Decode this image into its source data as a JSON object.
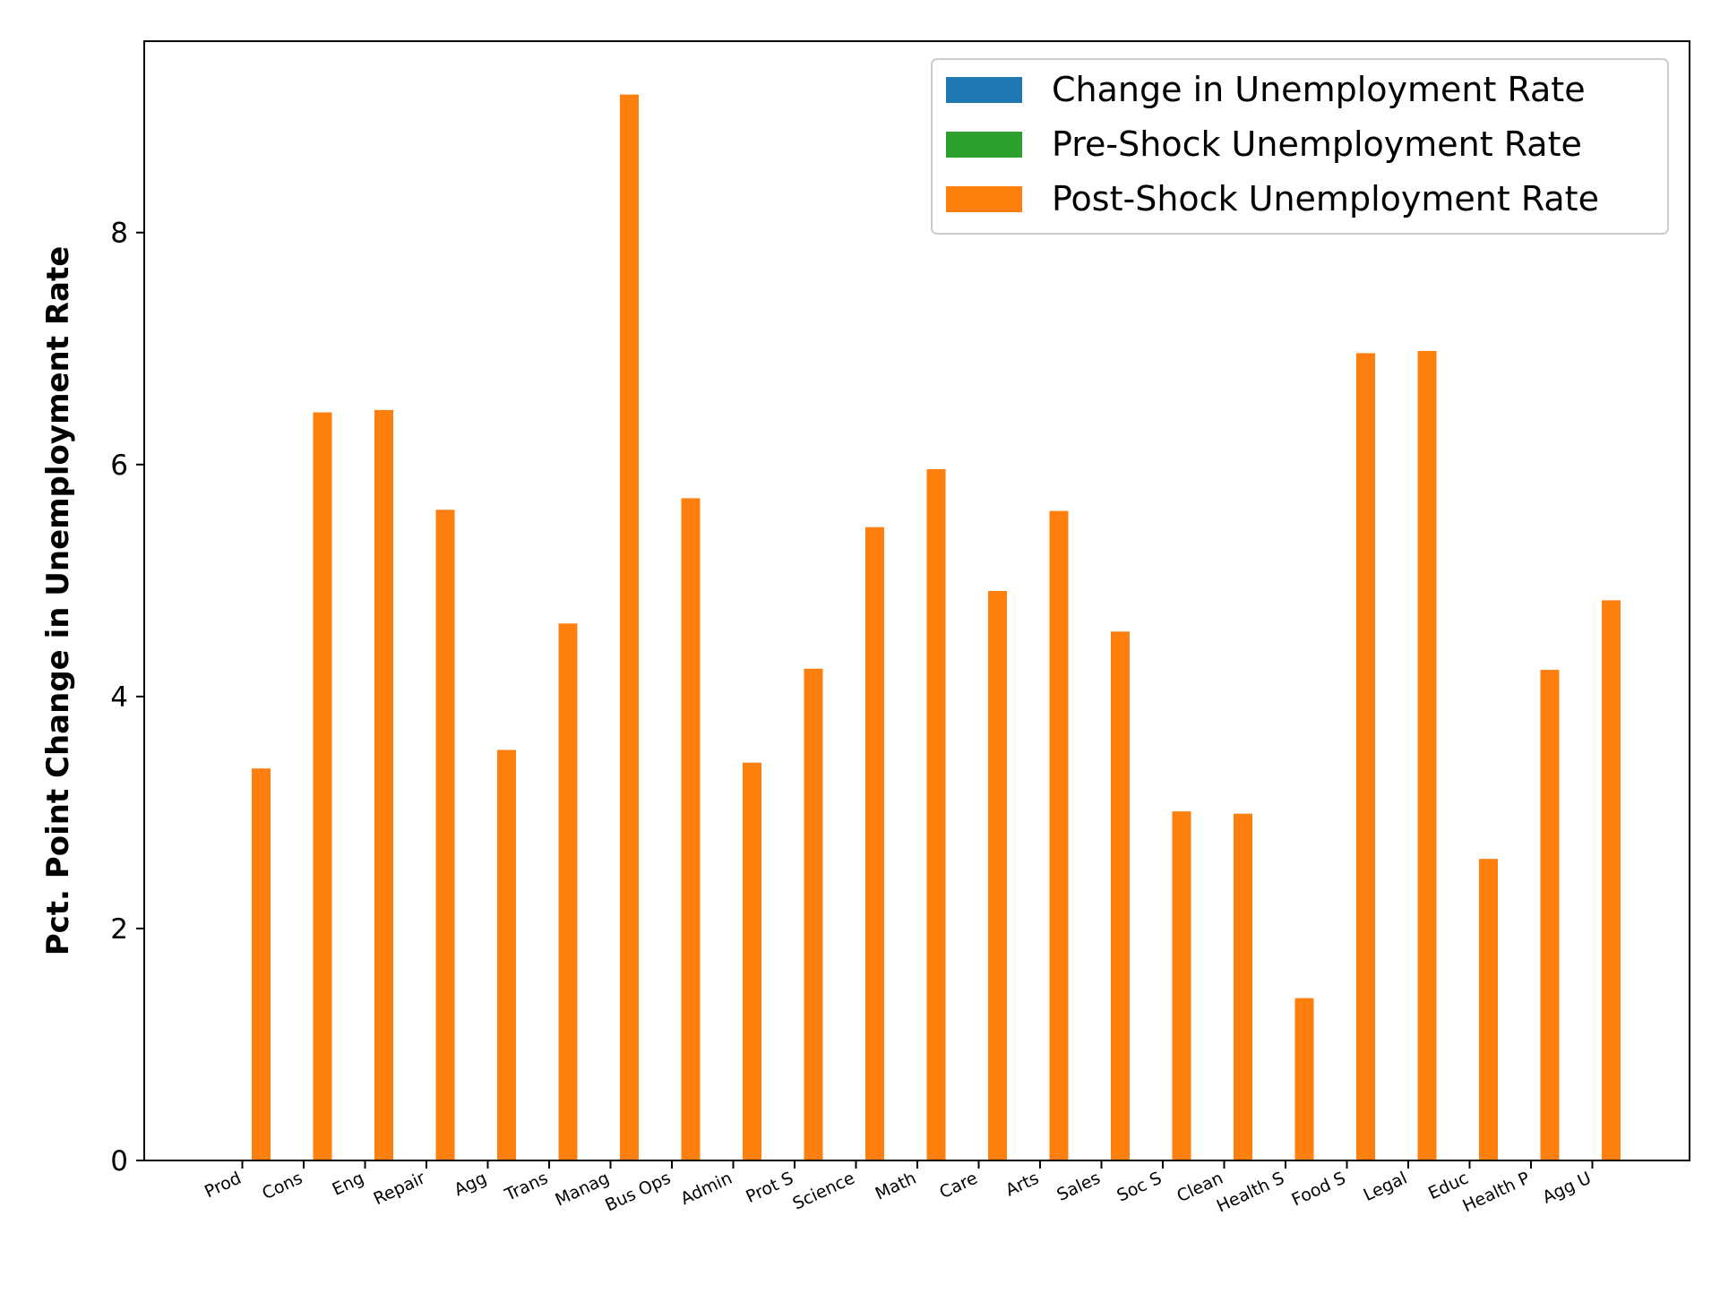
{
  "chart_data": {
    "type": "bar",
    "title": "",
    "xlabel": "",
    "ylabel": "Pct. Point Change in Unemployment Rate",
    "ylim": [
      0,
      9.65
    ],
    "yticks": [
      0,
      2,
      4,
      6,
      8
    ],
    "grid": false,
    "legend_position": "top-right",
    "categories": [
      "Prod",
      "Cons",
      "Eng",
      "Repair",
      "Agg",
      "Trans",
      "Manag",
      "Bus Ops",
      "Admin",
      "Prot S",
      "Science",
      "Math",
      "Care",
      "Arts",
      "Sales",
      "Soc S",
      "Clean",
      "Health S",
      "Food S",
      "Legal",
      "Educ",
      "Health P",
      "Agg U"
    ],
    "series": [
      {
        "name": "Change in Unemployment Rate",
        "color": "#1f77b4",
        "values": [
          0,
          0,
          0,
          0,
          0,
          0,
          0,
          0,
          0,
          0,
          0,
          0,
          0,
          0,
          0,
          0,
          0,
          0,
          0,
          0,
          0,
          0,
          0
        ]
      },
      {
        "name": "Pre-Shock Unemployment Rate",
        "color": "#2ca02c",
        "values": [
          0,
          0,
          0,
          0,
          0,
          0,
          0,
          0,
          0,
          0,
          0,
          0,
          0,
          0,
          0,
          0,
          0,
          0,
          0,
          0,
          0,
          0,
          0
        ]
      },
      {
        "name": "Post-Shock Unemployment Rate",
        "color": "#ff7f0e",
        "values": [
          3.38,
          6.45,
          6.47,
          5.61,
          3.54,
          4.63,
          9.19,
          5.71,
          3.43,
          4.24,
          5.46,
          5.96,
          4.91,
          5.6,
          4.56,
          3.01,
          2.99,
          1.4,
          6.96,
          6.98,
          2.6,
          4.23,
          4.83
        ]
      }
    ]
  }
}
